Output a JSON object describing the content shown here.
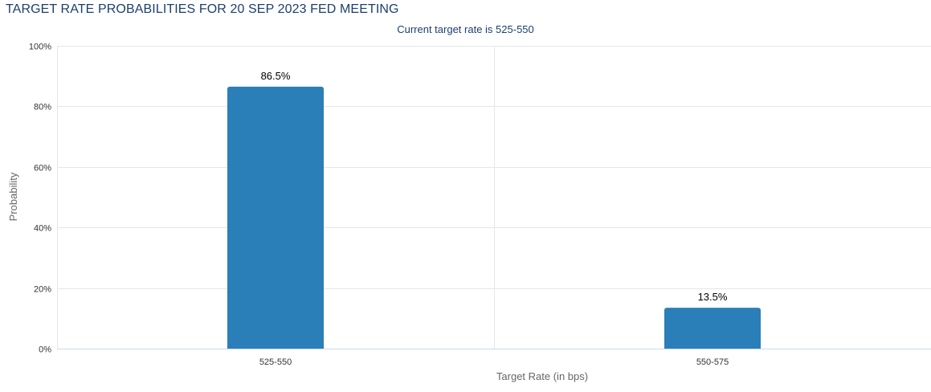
{
  "page": {
    "title": "TARGET RATE PROBABILITIES FOR 20 SEP 2023 FED MEETING"
  },
  "chart_data": {
    "type": "bar",
    "subtitle": "Current target rate is 525-550",
    "xlabel": "Target Rate (in bps)",
    "ylabel": "Probability",
    "categories": [
      "525-550",
      "550-575"
    ],
    "values": [
      86.5,
      13.5
    ],
    "data_labels": [
      "86.5%",
      "13.5%"
    ],
    "ylim": [
      0,
      100
    ],
    "y_ticks": [
      0,
      20,
      40,
      60,
      80,
      100
    ],
    "y_tick_labels": [
      "0%",
      "20%",
      "40%",
      "60%",
      "80%",
      "100%"
    ],
    "grid": true,
    "bar_color": "#2a7fb8",
    "grid_color": "#e6e6e6",
    "axis_color": "#ccd6eb",
    "title_color": "#1c3f6e"
  }
}
